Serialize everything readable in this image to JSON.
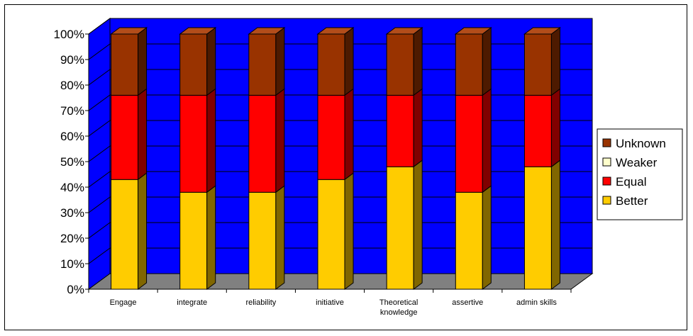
{
  "chart_data": {
    "type": "bar",
    "stacked": true,
    "percent_stacked": true,
    "three_d": true,
    "categories": [
      [
        "Engage"
      ],
      [
        "integrate"
      ],
      [
        "reliability"
      ],
      [
        "initiative"
      ],
      [
        "Theoretical",
        "knowledge"
      ],
      [
        "assertive"
      ],
      [
        "admin skills"
      ]
    ],
    "series": [
      {
        "name": "Better",
        "values": [
          43,
          38,
          38,
          43,
          48,
          38,
          48
        ]
      },
      {
        "name": "Weaker",
        "values": [
          0,
          0,
          0,
          0,
          0,
          0,
          0
        ]
      },
      {
        "name": "Equal",
        "values": [
          33,
          38,
          38,
          33,
          28,
          38,
          28
        ]
      },
      {
        "name": "Unknown",
        "values": [
          24,
          24,
          24,
          24,
          24,
          24,
          24
        ]
      }
    ],
    "ytick_labels": [
      "0%",
      "10%",
      "20%",
      "30%",
      "40%",
      "50%",
      "60%",
      "70%",
      "80%",
      "90%",
      "100%"
    ],
    "ylim": [
      0,
      100
    ],
    "legend": {
      "placement": "right",
      "order": [
        "Unknown",
        "Weaker",
        "Equal",
        "Better"
      ]
    },
    "colors": {
      "back_wall": "#0000ff",
      "floor": "#808080",
      "gridlines": "#000000",
      "series": {
        "Better": {
          "front": "#ffcc00",
          "side": "#806600",
          "top": "#ffd633"
        },
        "Weaker": {
          "front": "#ffffcc",
          "side": "#999966",
          "top": "#ffffe0"
        },
        "Equal": {
          "front": "#ff0000",
          "side": "#800000",
          "top": "#ff3333"
        },
        "Unknown": {
          "front": "#993300",
          "side": "#4d1a00",
          "top": "#b34d1a"
        }
      }
    }
  }
}
